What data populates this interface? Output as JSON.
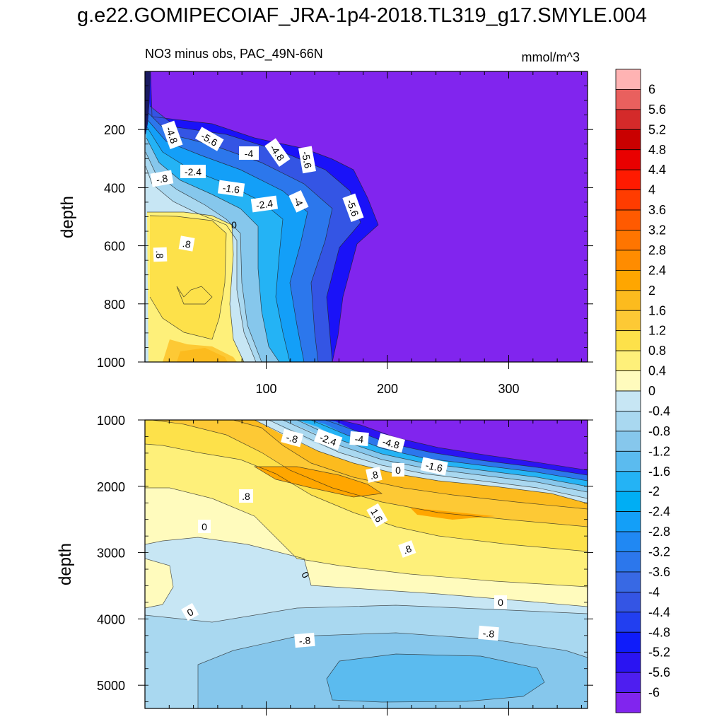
{
  "title": "g.e22.GOMIPECOIAF_JRA-1p4-2018.TL319_g17.SMYLE.004",
  "colors": {
    "neg6": "#8125ee",
    "zero_band": "#c7e6f4"
  },
  "chart_data": [
    {
      "type": "heatmap",
      "subtitle_left": "NO3 minus obs, PAC_49N-66N",
      "subtitle_right": "mmol/m^3",
      "ylabel": "depth",
      "xlabel": "",
      "xlim": [
        0,
        365
      ],
      "ylim": [
        1000,
        0
      ],
      "x_ticks": [
        "100",
        "200",
        "300"
      ],
      "x_tick_values": [
        100,
        200,
        300
      ],
      "y_ticks": [
        "200",
        "400",
        "600",
        "800",
        "1000"
      ],
      "y_tick_values": [
        200,
        400,
        600,
        800,
        1000
      ],
      "contour_labels": [
        "-4.8",
        "-5.6",
        "-4",
        "-4.8",
        "-5.6",
        "-.8",
        "-2.4",
        "-1.6",
        "-2.4",
        "-4",
        "-5.6",
        "0",
        ".8",
        ".8"
      ]
    },
    {
      "type": "heatmap",
      "ylabel": "depth",
      "xlabel": "",
      "xlim": [
        0,
        365
      ],
      "ylim": [
        5350,
        1000
      ],
      "y_ticks": [
        "1000",
        "2000",
        "3000",
        "4000",
        "5000"
      ],
      "y_tick_values": [
        1000,
        2000,
        3000,
        4000,
        5000
      ],
      "contour_labels": [
        "-.8",
        "-2.4",
        "-4",
        "-4.8",
        "0",
        "-1.6",
        ".8",
        ".8",
        "1.6",
        "0",
        ".8",
        "0",
        "0",
        "0",
        "-.8",
        "-.8"
      ]
    }
  ],
  "colorbar": {
    "labels": [
      "6",
      "5.6",
      "5.2",
      "4.8",
      "4.4",
      "4",
      "3.6",
      "3.2",
      "2.8",
      "2.4",
      "2",
      "1.6",
      "1.2",
      "0.8",
      "0.4",
      "0",
      "-0.4",
      "-0.8",
      "-1.2",
      "-1.6",
      "-2",
      "-2.4",
      "-2.8",
      "-3.2",
      "-3.6",
      "-4",
      "-4.4",
      "-4.8",
      "-5.2",
      "-5.6",
      "-6"
    ],
    "colors": [
      "#ffb3b3",
      "#e9605e",
      "#d42a2a",
      "#c90000",
      "#e90000",
      "#ff1a00",
      "#ff3c00",
      "#ff5a00",
      "#ff7500",
      "#ff8c00",
      "#ffa600",
      "#fcbb1e",
      "#fdc935",
      "#fde14a",
      "#fef07a",
      "#fffbbd",
      "#c7e6f4",
      "#a9d8f0",
      "#86c7ec",
      "#5bbbef",
      "#24b3f5",
      "#00aef4",
      "#139ff8",
      "#2088f3",
      "#2c77ec",
      "#3869e4",
      "#3455e4",
      "#223ff0",
      "#0f1cfa",
      "#2a14f2",
      "#4e1ef0",
      "#8125ee"
    ]
  }
}
